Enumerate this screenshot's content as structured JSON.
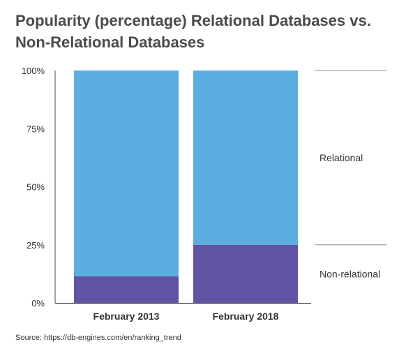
{
  "title": "Popularity (percentage) Relational Databases  vs. Non-Relational Databases",
  "source": "Source: https://db-engines.com/en/ranking_trend",
  "chart_data": {
    "type": "bar",
    "stacked": true,
    "categories": [
      "February 2013",
      "February 2018"
    ],
    "series": [
      {
        "name": "Non-relational",
        "values": [
          11.5,
          25
        ],
        "color": "#6054a4"
      },
      {
        "name": "Relational",
        "values": [
          88.5,
          75
        ],
        "color": "#5aaee0"
      }
    ],
    "ylim": [
      0,
      100
    ],
    "yticks": [
      "0%",
      "25%",
      "50%",
      "75%",
      "100%"
    ],
    "ytick_values": [
      0,
      25,
      50,
      75,
      100
    ],
    "legend": "right",
    "grid": false
  }
}
